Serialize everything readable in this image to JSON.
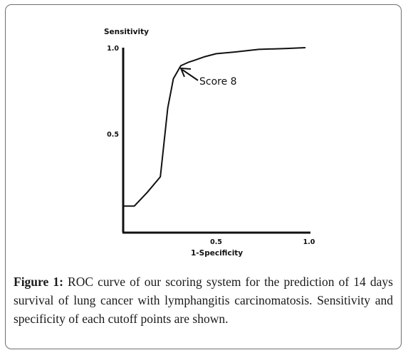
{
  "chart_data": {
    "type": "line",
    "ylabel": "Sensitivity",
    "xlabel": "1-Specificity",
    "xlim": [
      0,
      1
    ],
    "ylim": [
      0,
      1
    ],
    "x_ticks": [
      {
        "value": 0.5,
        "label": "0.5"
      },
      {
        "value": 1.0,
        "label": "1.0"
      }
    ],
    "y_ticks": [
      {
        "value": 1.0,
        "label": "1.0"
      },
      {
        "value": 0.5,
        "label": "0.5"
      }
    ],
    "series": [
      {
        "x": [
          0.0,
          0.06,
          0.13,
          0.2,
          0.24,
          0.27,
          0.31,
          0.35,
          0.38,
          0.44,
          0.5,
          0.6,
          0.73,
          0.87,
          0.98
        ],
        "y": [
          0.08,
          0.08,
          0.16,
          0.25,
          0.65,
          0.82,
          0.895,
          0.915,
          0.925,
          0.948,
          0.965,
          0.975,
          0.99,
          0.995,
          1.0
        ]
      }
    ],
    "annotation": {
      "text": "Score 8",
      "x": 0.31,
      "y": 0.895
    },
    "grid": false,
    "legend": "none"
  },
  "caption": {
    "label": "Figure 1:",
    "text": "ROC curve of our scoring system for the prediction of 14 days survival of lung cancer with lymphangitis carcinomatosis. Sensitivity and specificity of each cutoff points are shown."
  }
}
